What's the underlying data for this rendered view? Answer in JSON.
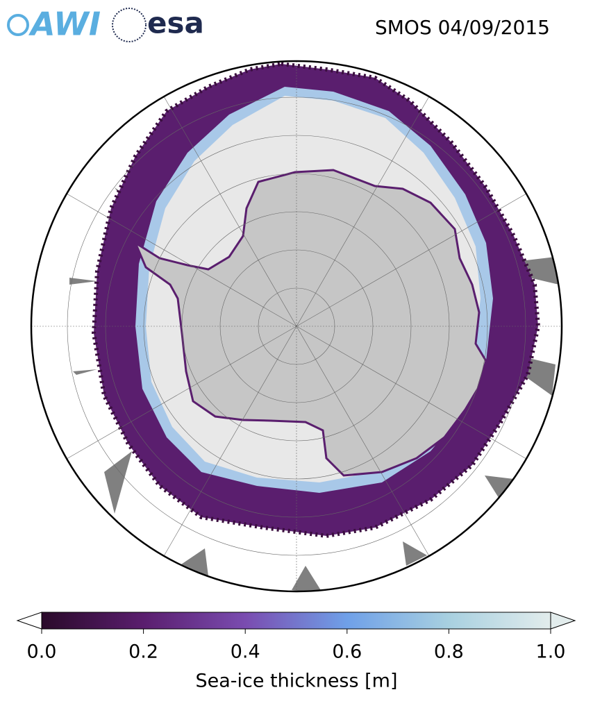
{
  "header": {
    "logos": [
      "AWI",
      "esa"
    ],
    "title": "SMOS 04/09/2015"
  },
  "colorbar": {
    "lim": [
      0,
      1
    ],
    "ticks": [
      {
        "value": 0,
        "label": "0.0"
      },
      0.2,
      0.4,
      0.6,
      0.8,
      {
        "value": 1,
        "label": "1.0"
      }
    ],
    "label": "Sea-ice thickness [m]",
    "colors": [
      "#2a0a2a",
      "#5a1e6e",
      "#7a4cb0",
      "#6fa0e8",
      "#a8d0e0",
      "#e2ecec"
    ]
  }
}
